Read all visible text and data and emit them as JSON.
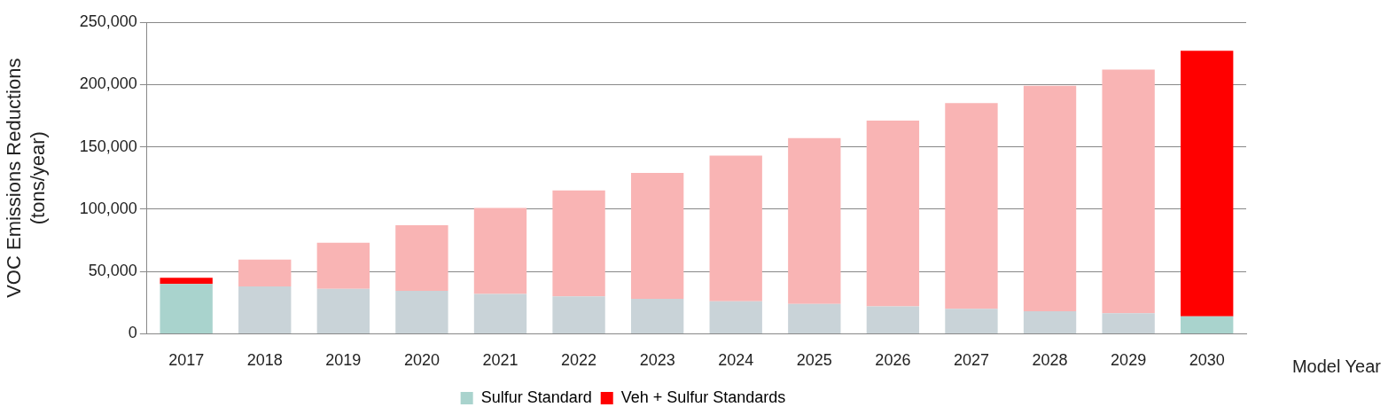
{
  "chart_data": {
    "type": "bar",
    "stacked": true,
    "categories": [
      "2017",
      "2018",
      "2019",
      "2020",
      "2021",
      "2022",
      "2023",
      "2024",
      "2025",
      "2026",
      "2027",
      "2028",
      "2029",
      "2030"
    ],
    "series": [
      {
        "name": "Sulfur Standard",
        "color": "#a9d3cd",
        "colors": [
          "#a9d3cd",
          "#c9d3d8",
          "#c9d3d8",
          "#c9d3d8",
          "#c9d3d8",
          "#c9d3d8",
          "#c9d3d8",
          "#c9d3d8",
          "#c9d3d8",
          "#c9d3d8",
          "#c9d3d8",
          "#c9d3d8",
          "#c9d3d8",
          "#a9d3cd"
        ],
        "values": [
          40000,
          38000,
          36000,
          34500,
          32000,
          30000,
          28000,
          26000,
          24000,
          22000,
          20000,
          18000,
          16500,
          14000
        ]
      },
      {
        "name": "Veh + Sulfur Standards",
        "color": "#ff0000",
        "colors": [
          "#ff0000",
          "#f9b4b4",
          "#f9b4b4",
          "#f9b4b4",
          "#f9b4b4",
          "#f9b4b4",
          "#f9b4b4",
          "#f9b4b4",
          "#f9b4b4",
          "#f9b4b4",
          "#f9b4b4",
          "#f9b4b4",
          "#f9b4b4",
          "#ff0000"
        ],
        "values": [
          5000,
          21500,
          37000,
          52500,
          69000,
          85000,
          101000,
          117000,
          133000,
          149000,
          165000,
          181000,
          195500,
          213000
        ]
      }
    ],
    "ylim": [
      0,
      250000
    ],
    "yticks": [
      0,
      {
        "value": 50000,
        "label": "50,000"
      },
      {
        "value": 100000,
        "label": "100,000"
      },
      {
        "value": 150000,
        "label": "150,000"
      },
      {
        "value": 200000,
        "label": "200,000"
      },
      {
        "value": 250000,
        "label": "250,000"
      }
    ],
    "ylabel": "VOC Emissions Reductions\n(tons/year)",
    "xlabel": "Model Year",
    "grid": "y",
    "legend": "bottom"
  }
}
